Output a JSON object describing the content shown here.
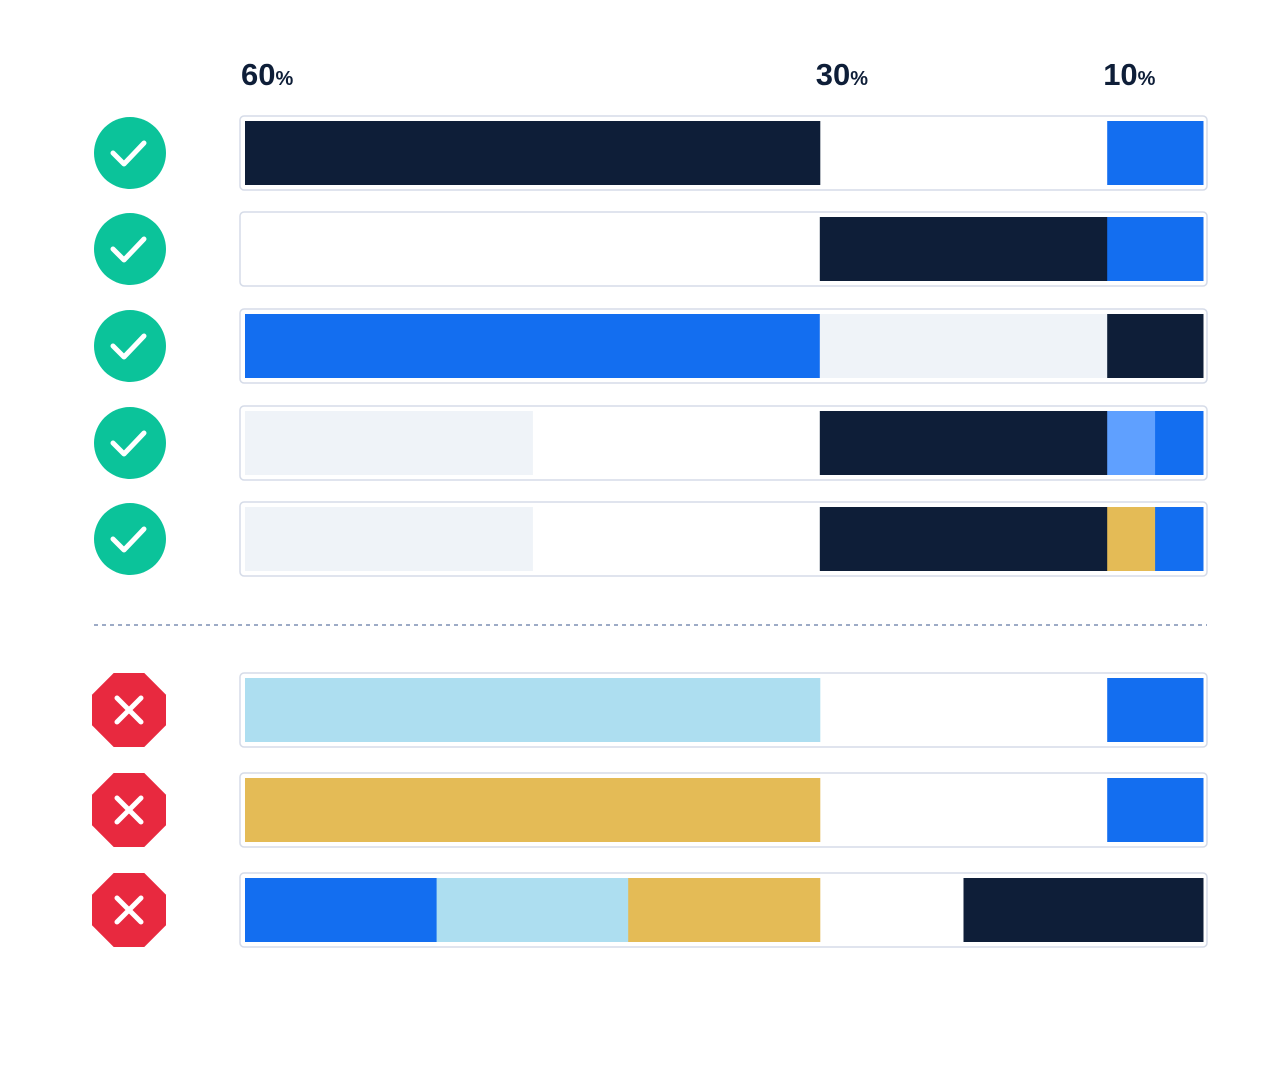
{
  "headers": [
    {
      "value": "60",
      "unit": "%"
    },
    {
      "value": "30",
      "unit": "%"
    },
    {
      "value": "10",
      "unit": "%"
    }
  ],
  "rows": [
    {
      "icon": "check",
      "zones": [
        [
          "#0e1e38"
        ],
        [
          null
        ],
        [
          "#136ef0"
        ]
      ]
    },
    {
      "icon": "check",
      "zones": [
        [
          null
        ],
        [
          "#0e1e38"
        ],
        [
          "#136ef0"
        ]
      ]
    },
    {
      "icon": "check",
      "zones": [
        [
          "#136ef0"
        ],
        [
          "#eff3f8"
        ],
        [
          "#0e1e38"
        ]
      ]
    },
    {
      "icon": "check",
      "zones": [
        [
          "#eff3f8",
          null
        ],
        [
          "#0e1e38"
        ],
        [
          "#5fa0ff",
          "#136ef0"
        ]
      ]
    },
    {
      "icon": "check",
      "zones": [
        [
          "#eff3f8",
          null
        ],
        [
          "#0e1e38"
        ],
        [
          "#e4bb56",
          "#136ef0"
        ]
      ]
    },
    {
      "icon": "cross",
      "zones": [
        [
          "#addef0"
        ],
        [
          null
        ],
        [
          "#136ef0"
        ]
      ]
    },
    {
      "icon": "cross",
      "zones": [
        [
          "#e4bb56"
        ],
        [
          null
        ],
        [
          "#136ef0"
        ]
      ]
    },
    {
      "icon": "cross",
      "zones": [
        [
          "#136ef0",
          "#addef0",
          "#e4bb56"
        ],
        [
          null,
          "#0e1e38"
        ],
        [
          "#0e1e38"
        ]
      ]
    }
  ]
}
